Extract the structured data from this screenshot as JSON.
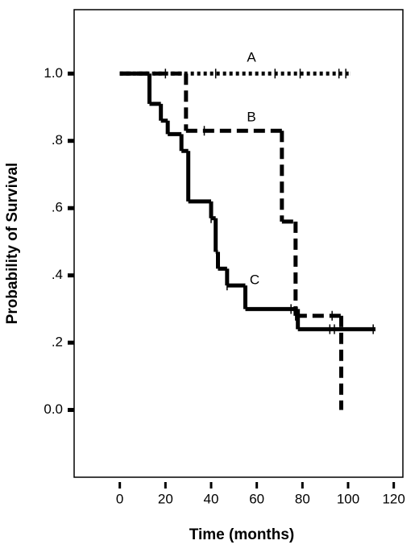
{
  "chart_data": {
    "type": "step",
    "xlabel": "Time (months)",
    "ylabel": "Probability of Survival",
    "xlim": [
      -20,
      124
    ],
    "ylim": [
      -0.2,
      1.19
    ],
    "xticks": [
      0,
      20,
      40,
      60,
      80,
      100,
      120
    ],
    "yticks": [
      {
        "value": 0,
        "label": "0.0"
      },
      {
        "value": 0.2,
        "label": ".2"
      },
      {
        "value": 0.4,
        "label": ".4"
      },
      {
        "value": 0.6,
        "label": ".6"
      },
      {
        "value": 0.8,
        "label": ".8"
      },
      {
        "value": 1,
        "label": "1.0"
      }
    ],
    "series": [
      {
        "name": "A",
        "color": "#000000",
        "dash": "dotted",
        "x": [
          0,
          101
        ],
        "values": [
          1,
          1
        ],
        "censored_x": [
          20,
          42,
          68,
          79,
          96,
          99
        ],
        "censored_values": [
          1,
          1,
          1,
          1,
          1,
          1
        ]
      },
      {
        "name": "B",
        "color": "#000000",
        "dash": "dashed",
        "x": [
          0,
          29,
          71,
          77,
          97
        ],
        "values": [
          1,
          0.83,
          0.56,
          0.28,
          0
        ],
        "censored_x": [
          37,
          77,
          93
        ],
        "censored_values": [
          0.83,
          0.28,
          0.28
        ]
      },
      {
        "name": "C",
        "color": "#000000",
        "dash": "solid",
        "x": [
          0,
          13,
          18,
          21,
          27,
          30,
          40,
          42,
          43,
          47,
          55,
          78,
          112
        ],
        "values": [
          1,
          0.91,
          0.86,
          0.82,
          0.77,
          0.62,
          0.57,
          0.47,
          0.42,
          0.37,
          0.3,
          0.24,
          0.24
        ],
        "censored_x": [
          40,
          47,
          75,
          92,
          94,
          111
        ],
        "censored_values": [
          0.57,
          0.37,
          0.3,
          0.24,
          0.24,
          0.24
        ]
      }
    ]
  }
}
